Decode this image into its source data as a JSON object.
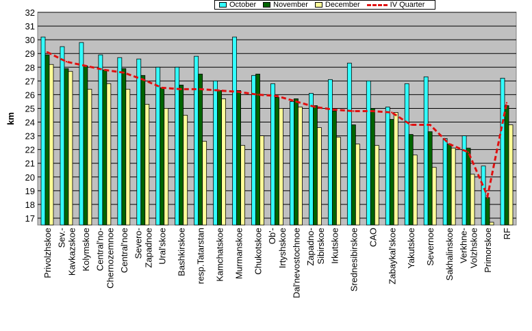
{
  "chart_data": {
    "type": "bar",
    "title": "",
    "xlabel": "",
    "ylabel": "km",
    "ylim": [
      16.5,
      32
    ],
    "yticks": [
      17,
      18,
      19,
      20,
      21,
      22,
      23,
      24,
      25,
      26,
      27,
      28,
      29,
      30,
      31,
      32
    ],
    "grid": true,
    "legend_position": "top",
    "categories": [
      "Privolzhskoe",
      "Sev.-Kavkazskoe",
      "Kolymskoe",
      "Central'no-Chernozemnoe",
      "Central'noe",
      "Severo-Zapadnoe",
      "Ural'skoe",
      "Bashkirskoe",
      "resp.Tatarstan",
      "Kamchatskoe",
      "Murmanskoe",
      "Chukotskoe",
      "Ob'-Irtyshskoe",
      "Dal'nevostochnoe",
      "Zapadno-Sibirskoe",
      "Irkutskoe",
      "Srednesibirskoe",
      "CAO",
      "Zabaykal'skoe",
      "Yakutskoe",
      "Severnoe",
      "Sakhalinskoe",
      "Verkhne-Volzhskoe",
      "Primorskoe",
      "RF"
    ],
    "category_label_lines": [
      [
        "Privolzhskoe"
      ],
      [
        "Sev.-",
        "Kavkazskoe"
      ],
      [
        "Kolymskoe"
      ],
      [
        "Central'no-",
        "Chernozemnoe"
      ],
      [
        "Central'noe"
      ],
      [
        "Severo-",
        "Zapadnoe"
      ],
      [
        "Ural'skoe"
      ],
      [
        "Bashkirskoe"
      ],
      [
        "resp.Tatarstan"
      ],
      [
        "Kamchatskoe"
      ],
      [
        "Murmanskoe"
      ],
      [
        "Chukotskoe"
      ],
      [
        "Ob'-",
        "Irtyshskoe"
      ],
      [
        "Dal'nevostochnoe"
      ],
      [
        "Zapadno-",
        "Sibirskoe"
      ],
      [
        "Irkutskoe"
      ],
      [
        "Srednesibirskoe"
      ],
      [
        "CAO"
      ],
      [
        "Zabaykal'skoe"
      ],
      [
        "Yakutskoe"
      ],
      [
        "Severnoe"
      ],
      [
        "Sakhalinskoe"
      ],
      [
        "Verkhne-",
        "Volzhskoe"
      ],
      [
        "Primorskoe"
      ],
      [
        "RF"
      ]
    ],
    "series": [
      {
        "name": "October",
        "kind": "bar",
        "color": "#33ffff",
        "values": [
          30.2,
          29.5,
          29.8,
          28.9,
          28.7,
          28.6,
          28.0,
          28.0,
          28.8,
          27.0,
          30.2,
          27.4,
          26.8,
          25.5,
          26.1,
          27.1,
          28.3,
          27.0,
          25.1,
          26.8,
          27.3,
          22.8,
          23.0,
          20.8,
          27.2
        ]
      },
      {
        "name": "November",
        "kind": "bar",
        "color": "#006400",
        "values": [
          28.9,
          27.9,
          28.1,
          27.8,
          27.9,
          27.4,
          26.5,
          26.7,
          27.5,
          26.3,
          26.3,
          27.5,
          25.8,
          25.7,
          25.2,
          24.8,
          23.8,
          25.0,
          24.2,
          23.1,
          23.3,
          22.4,
          22.1,
          18.5,
          25.2
        ]
      },
      {
        "name": "December",
        "kind": "bar",
        "color": "#ffff99",
        "values": [
          28.2,
          27.7,
          26.4,
          26.8,
          26.4,
          25.3,
          25.0,
          24.5,
          22.6,
          25.7,
          22.3,
          23.0,
          25.0,
          25.1,
          23.6,
          22.9,
          22.4,
          22.3,
          24.7,
          21.6,
          20.7,
          22.1,
          20.2,
          16.7,
          23.8
        ]
      },
      {
        "name": "IV Quarter",
        "kind": "line",
        "color": "#e01010",
        "values": [
          29.1,
          28.4,
          28.1,
          27.8,
          27.6,
          27.1,
          26.5,
          26.4,
          26.4,
          26.3,
          26.2,
          26.0,
          25.9,
          25.5,
          25.1,
          24.9,
          24.8,
          24.8,
          24.7,
          23.8,
          23.8,
          22.4,
          21.8,
          18.6,
          25.4
        ]
      }
    ]
  }
}
